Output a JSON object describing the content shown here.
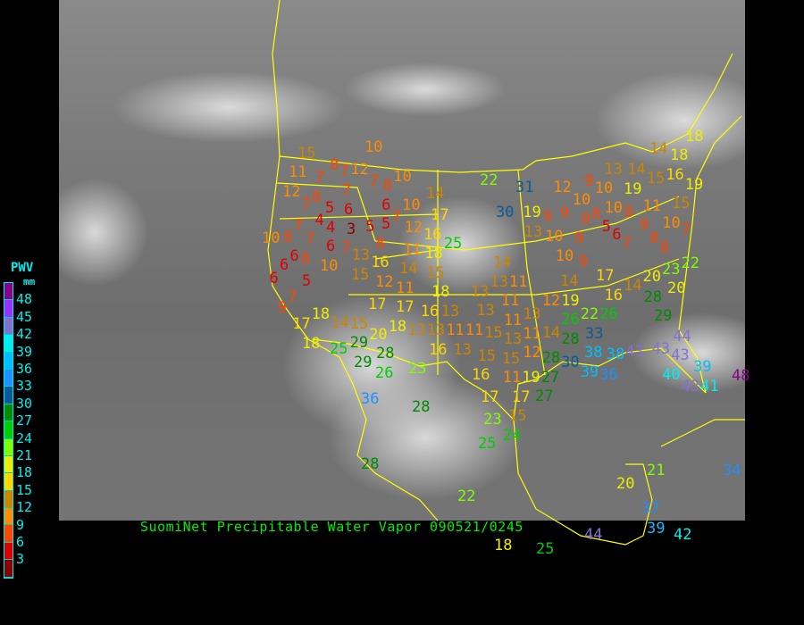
{
  "title": "SuomiNet Precipitable Water Vapor 090521/0245",
  "legend": {
    "title": "PWV",
    "unit": "mm",
    "ticks": [
      "48",
      "45",
      "42",
      "39",
      "36",
      "33",
      "30",
      "27",
      "24",
      "21",
      "18",
      "15",
      "12",
      "9",
      "6",
      "3"
    ],
    "colors": [
      "#8b008b",
      "#9b30ff",
      "#8470d0",
      "#00eeee",
      "#00bfff",
      "#1e90ff",
      "#0a5a9a",
      "#008b00",
      "#00cd00",
      "#7fff00",
      "#eeee00",
      "#ffd700",
      "#cd8500",
      "#ff8c00",
      "#ff4500",
      "#e00000",
      "#8b0000"
    ]
  },
  "map": {
    "border_color": "#ffff00"
  },
  "stations": [
    15,
    10,
    8,
    12,
    11,
    7,
    7,
    7,
    10,
    8,
    7,
    12,
    8,
    14,
    7,
    6,
    6,
    10,
    5,
    4,
    7,
    7,
    4,
    3,
    5,
    5,
    12,
    17,
    25,
    10,
    8,
    7,
    6,
    7,
    8,
    11,
    16,
    6,
    8,
    10,
    13,
    16,
    18,
    6,
    15,
    6,
    15,
    12,
    14,
    11,
    5,
    18,
    7,
    9,
    18,
    17,
    17,
    16,
    13,
    14,
    15,
    18,
    13,
    11,
    14,
    18,
    18,
    13,
    14,
    15,
    16,
    19,
    19,
    22,
    31,
    12,
    9,
    10,
    10,
    10,
    15,
    30,
    19,
    9,
    8,
    8,
    8,
    11,
    9,
    5,
    10,
    9,
    13,
    10,
    9,
    6,
    7,
    8,
    7,
    8,
    10,
    9,
    14,
    23,
    22,
    20,
    17,
    14,
    20,
    13,
    11,
    14,
    19,
    16,
    13,
    11,
    28,
    12,
    13,
    29,
    13,
    22,
    26,
    11,
    25,
    29,
    20,
    28,
    29,
    26,
    23,
    16,
    13,
    15,
    16,
    15,
    13,
    13,
    11,
    11,
    14,
    26,
    12,
    15,
    19,
    11,
    28,
    30,
    28,
    27,
    27,
    33,
    38,
    39,
    36,
    38,
    43,
    43,
    44,
    43,
    40,
    39,
    43,
    41,
    48,
    36,
    28,
    17,
    17,
    15,
    23,
    24,
    25,
    28,
    22,
    20,
    21,
    34,
    37,
    39,
    42,
    44,
    17,
    18,
    25,
    18
  ]
}
